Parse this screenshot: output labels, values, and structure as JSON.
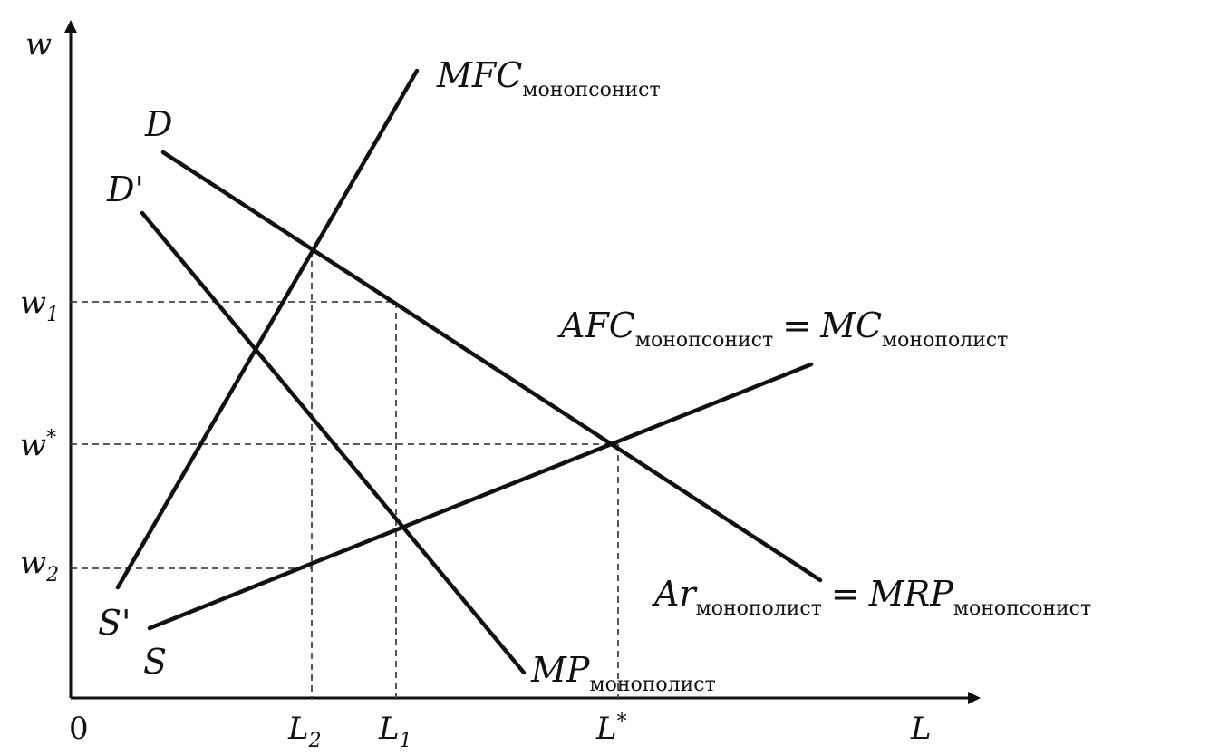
{
  "axes": {
    "y_label": "w",
    "x_label": "L",
    "origin_label": "0"
  },
  "y_ticks": [
    {
      "main": "w",
      "sub": "1"
    },
    {
      "main": "w",
      "sup": "*"
    },
    {
      "main": "w",
      "sub": "2"
    }
  ],
  "x_ticks": [
    {
      "main": "L",
      "sub": "2"
    },
    {
      "main": "L",
      "sub": "1"
    },
    {
      "main": "L",
      "sup": "*"
    }
  ],
  "curves": {
    "D": "D",
    "D_prime": "D'",
    "S": "S",
    "S_prime": "S'",
    "mfc": {
      "main": "MFC",
      "sub": "монопсонист"
    },
    "afc": {
      "main1": "AFC",
      "sub1": "монопсонист",
      "eq": "=",
      "main2": "MC",
      "sub2": "монополист"
    },
    "ar": {
      "main1": "Ar",
      "sub1": "монополист",
      "eq": "=",
      "main2": "MRP",
      "sub2": "монопсонист"
    },
    "mp": {
      "main": "MP",
      "sub": "монополист"
    }
  }
}
